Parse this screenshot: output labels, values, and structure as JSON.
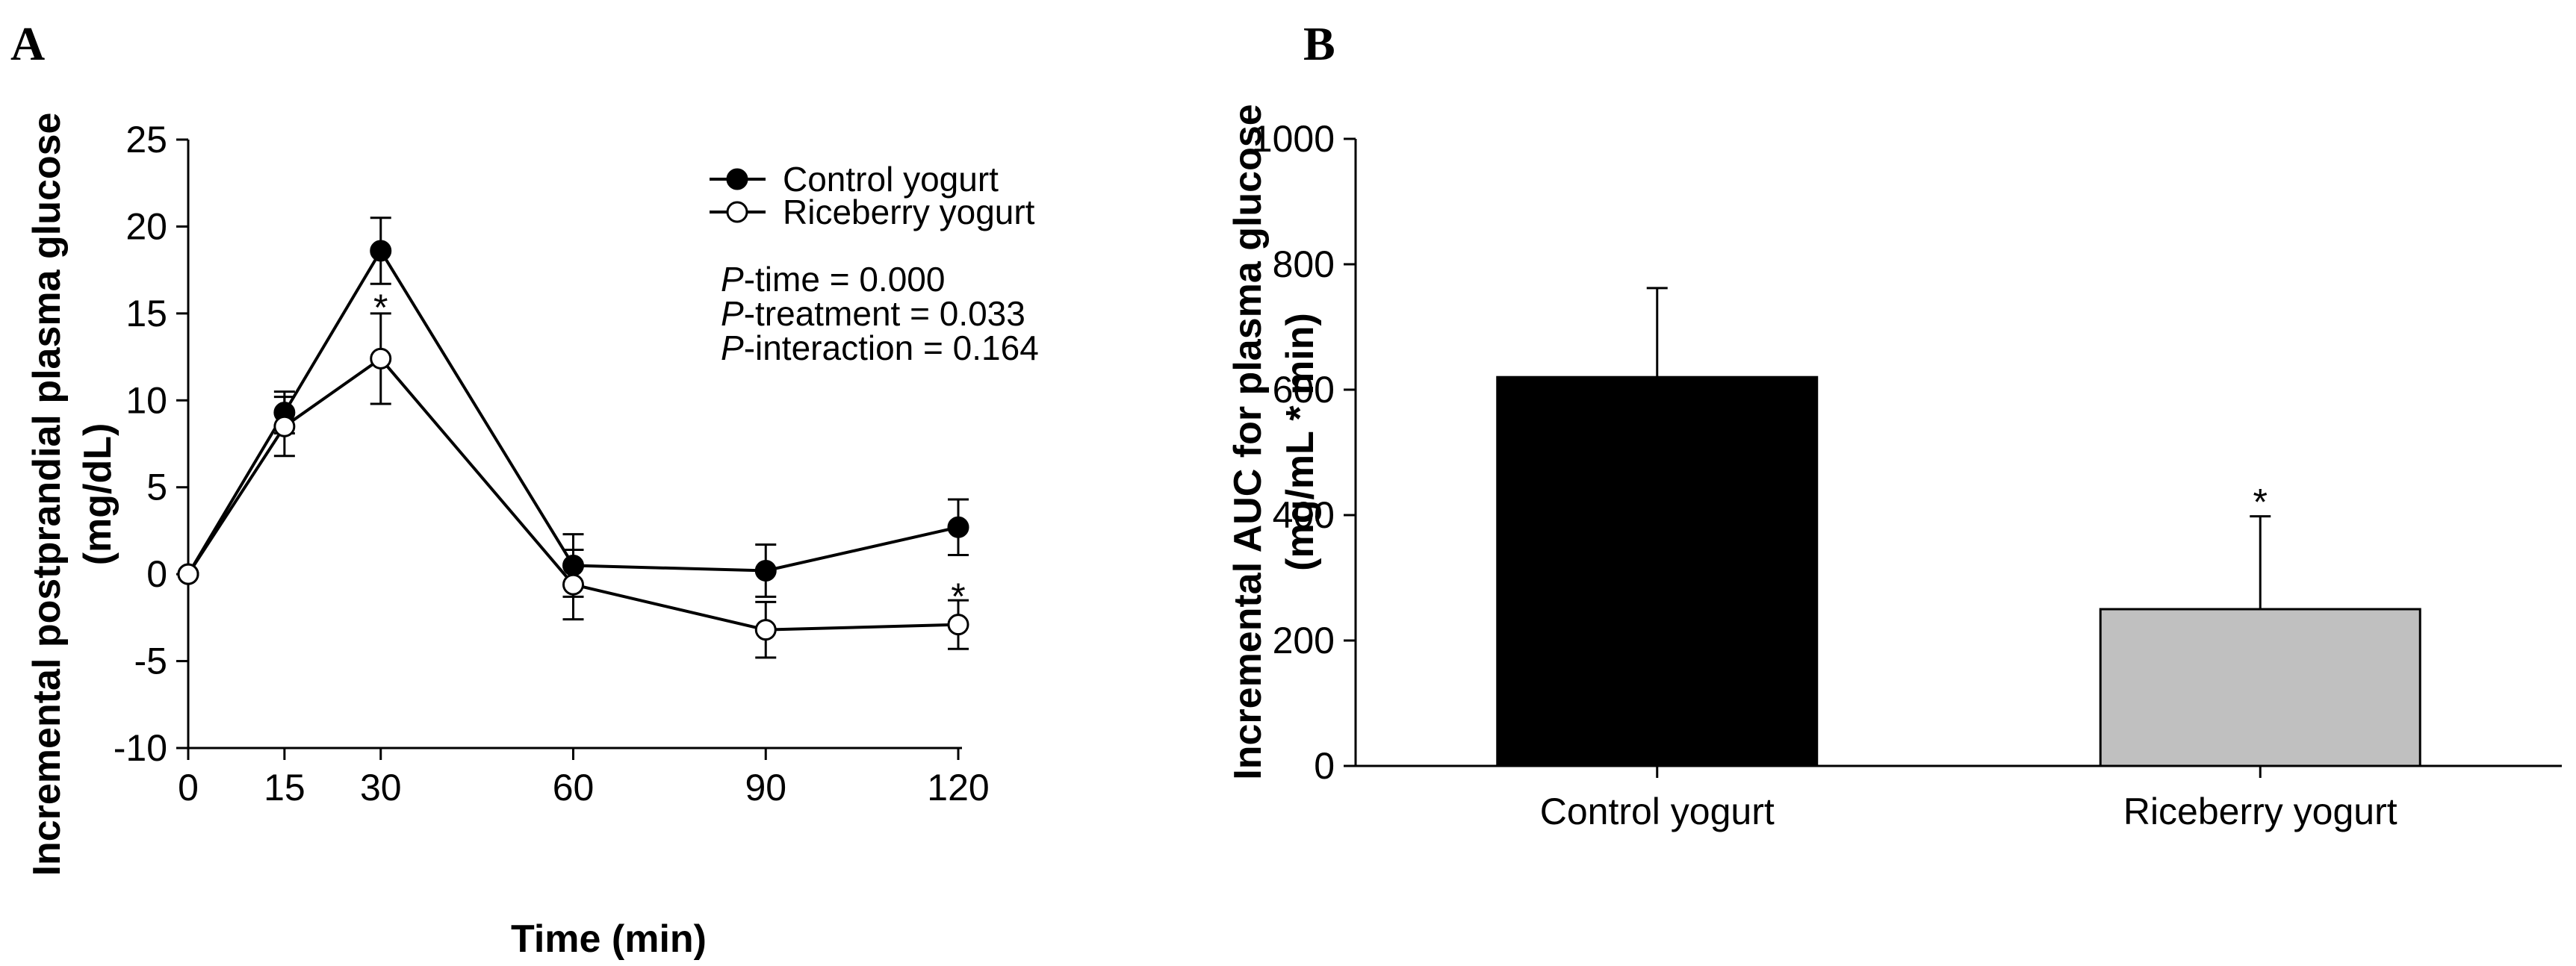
{
  "chart_data": [
    {
      "panel": "A",
      "type": "line",
      "xlabel": "Time (min)",
      "ylabel": "Incremental postprandial plasma glucose",
      "ylabel_unit": "(mg/dL)",
      "x": [
        0,
        15,
        30,
        60,
        90,
        120
      ],
      "x_ticks": [
        "0",
        "15",
        "30",
        "60",
        "90",
        "120"
      ],
      "xlim": [
        0,
        120
      ],
      "y_ticks": [
        "-10",
        "-5",
        "0",
        "5",
        "10",
        "15",
        "20",
        "25"
      ],
      "ylim": [
        -10,
        25
      ],
      "grid": false,
      "legend_position": "top-right",
      "series": [
        {
          "name": "Control yogurt",
          "marker": "filled-circle",
          "color": "#000000",
          "values": [
            0,
            9.3,
            18.6,
            0.5,
            0.2,
            2.7
          ],
          "errors": [
            0,
            1.2,
            1.9,
            1.8,
            1.5,
            1.6
          ]
        },
        {
          "name": "Riceberry yogurt",
          "marker": "open-circle",
          "color": "#000000",
          "values": [
            0,
            8.5,
            12.4,
            -0.6,
            -3.2,
            -2.9
          ],
          "errors": [
            0,
            1.7,
            2.6,
            2.0,
            1.6,
            1.4
          ]
        }
      ],
      "significance": [
        {
          "x": 30,
          "y": 15.8,
          "text": "*"
        },
        {
          "x": 120,
          "y": -0.8,
          "text": "*"
        }
      ],
      "stats_text": [
        {
          "italic": "P",
          "rest": "-time = 0.000"
        },
        {
          "italic": "P",
          "rest": "-treatment = 0.033"
        },
        {
          "italic": "P",
          "rest": "-interaction = 0.164"
        }
      ]
    },
    {
      "panel": "B",
      "type": "bar",
      "categories": [
        "Control yogurt",
        "Riceberry yogurt"
      ],
      "values": [
        620,
        250
      ],
      "errors": [
        142,
        148
      ],
      "colors": [
        "#000000",
        "#c0c0c0"
      ],
      "xlabel": "",
      "ylabel": "Incremental AUC for plasma glucose",
      "ylabel_unit": "(mg/mL * min)",
      "y_ticks": [
        "0",
        "200",
        "400",
        "600",
        "800",
        "1000"
      ],
      "ylim": [
        0,
        1000
      ],
      "grid": false,
      "significance": [
        {
          "category": "Riceberry yogurt",
          "text": "*"
        }
      ]
    }
  ]
}
